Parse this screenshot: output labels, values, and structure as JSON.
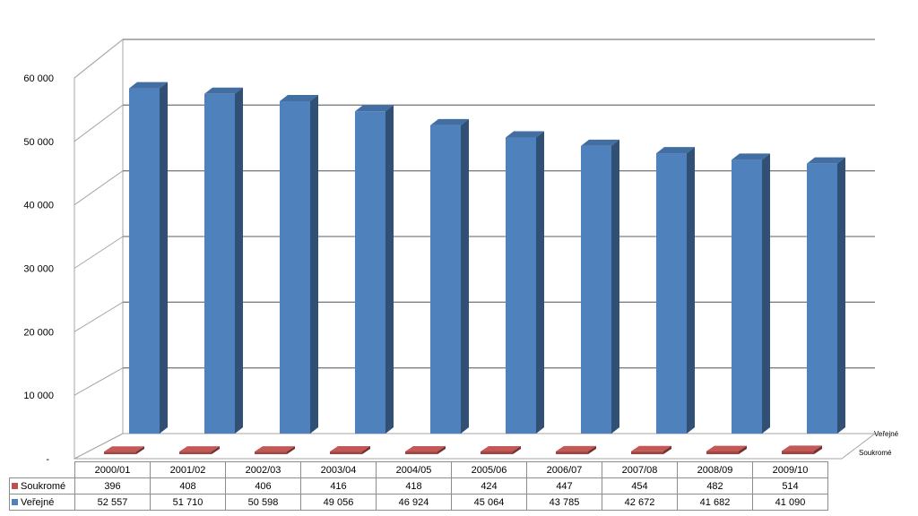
{
  "chart_data": {
    "type": "bar",
    "categories": [
      "2000/01",
      "2001/02",
      "2002/03",
      "2003/04",
      "2004/05",
      "2005/06",
      "2006/07",
      "2007/08",
      "2008/09",
      "2009/10"
    ],
    "series": [
      {
        "name": "Soukromé",
        "values": [
          396,
          408,
          406,
          416,
          418,
          424,
          447,
          454,
          482,
          514
        ],
        "color": "#c0504d",
        "table_values": [
          "396",
          "408",
          "406",
          "416",
          "418",
          "424",
          "447",
          "454",
          "482",
          "514"
        ]
      },
      {
        "name": "Veřejné",
        "values": [
          52557,
          51710,
          50598,
          49056,
          46924,
          45064,
          43785,
          42672,
          41682,
          41090
        ],
        "color": "#4f81bd",
        "table_values": [
          "52 557",
          "51 710",
          "50 598",
          "49 056",
          "46 924",
          "45 064",
          "43 785",
          "42 672",
          "41 682",
          "41 090"
        ]
      }
    ],
    "ylim": [
      0,
      60000
    ],
    "yticks": [
      {
        "value": 0,
        "label": "-"
      },
      {
        "value": 10000,
        "label": "10 000"
      },
      {
        "value": 20000,
        "label": "20 000"
      },
      {
        "value": 30000,
        "label": "30 000"
      },
      {
        "value": 40000,
        "label": "40 000"
      },
      {
        "value": 50000,
        "label": "50 000"
      },
      {
        "value": 60000,
        "label": "60 000"
      }
    ],
    "depth_labels": [
      "Veřejné",
      "Soukromé"
    ],
    "grid": true,
    "legend": "data-table"
  }
}
